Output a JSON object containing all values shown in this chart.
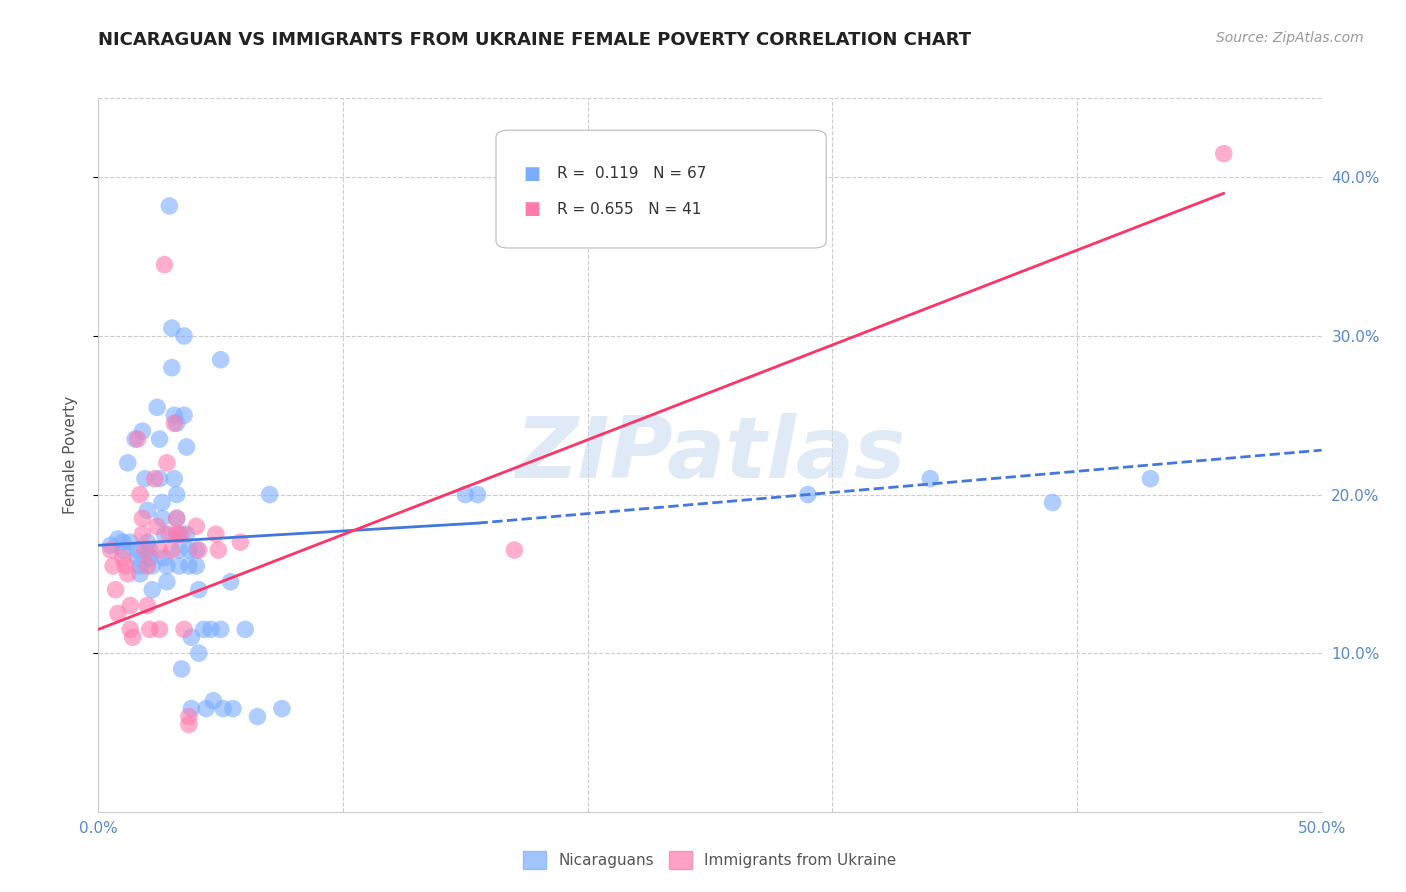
{
  "title": "NICARAGUAN VS IMMIGRANTS FROM UKRAINE FEMALE POVERTY CORRELATION CHART",
  "source": "Source: ZipAtlas.com",
  "ylabel": "Female Poverty",
  "xlim": [
    0.0,
    0.5
  ],
  "ylim": [
    0.0,
    0.45
  ],
  "xticks": [
    0.0,
    0.1,
    0.2,
    0.3,
    0.4,
    0.5
  ],
  "xtick_labels": [
    "0.0%",
    "",
    "",
    "",
    "",
    "50.0%"
  ],
  "yticks": [
    0.1,
    0.2,
    0.3,
    0.4
  ],
  "ytick_labels": [
    "10.0%",
    "20.0%",
    "30.0%",
    "40.0%"
  ],
  "nicaraguan_color": "#7aadff",
  "ukraine_color": "#ff7aad",
  "line_nicaraguan_color": "#4477dd",
  "line_ukraine_color": "#ff3366",
  "watermark": "ZIPatlas",
  "nicaraguan_scatter": [
    [
      0.005,
      0.168
    ],
    [
      0.008,
      0.172
    ],
    [
      0.01,
      0.165
    ],
    [
      0.01,
      0.17
    ],
    [
      0.012,
      0.22
    ],
    [
      0.013,
      0.17
    ],
    [
      0.015,
      0.235
    ],
    [
      0.016,
      0.16
    ],
    [
      0.016,
      0.165
    ],
    [
      0.017,
      0.15
    ],
    [
      0.017,
      0.155
    ],
    [
      0.018,
      0.24
    ],
    [
      0.019,
      0.21
    ],
    [
      0.02,
      0.19
    ],
    [
      0.02,
      0.17
    ],
    [
      0.021,
      0.165
    ],
    [
      0.021,
      0.16
    ],
    [
      0.022,
      0.155
    ],
    [
      0.022,
      0.14
    ],
    [
      0.024,
      0.255
    ],
    [
      0.025,
      0.235
    ],
    [
      0.025,
      0.21
    ],
    [
      0.026,
      0.195
    ],
    [
      0.026,
      0.185
    ],
    [
      0.027,
      0.175
    ],
    [
      0.027,
      0.16
    ],
    [
      0.028,
      0.155
    ],
    [
      0.028,
      0.145
    ],
    [
      0.029,
      0.382
    ],
    [
      0.03,
      0.305
    ],
    [
      0.03,
      0.28
    ],
    [
      0.031,
      0.25
    ],
    [
      0.031,
      0.21
    ],
    [
      0.032,
      0.245
    ],
    [
      0.032,
      0.2
    ],
    [
      0.032,
      0.185
    ],
    [
      0.033,
      0.175
    ],
    [
      0.033,
      0.165
    ],
    [
      0.033,
      0.155
    ],
    [
      0.034,
      0.09
    ],
    [
      0.035,
      0.3
    ],
    [
      0.035,
      0.25
    ],
    [
      0.036,
      0.23
    ],
    [
      0.036,
      0.175
    ],
    [
      0.037,
      0.165
    ],
    [
      0.037,
      0.155
    ],
    [
      0.038,
      0.11
    ],
    [
      0.038,
      0.065
    ],
    [
      0.04,
      0.165
    ],
    [
      0.04,
      0.155
    ],
    [
      0.041,
      0.14
    ],
    [
      0.041,
      0.1
    ],
    [
      0.043,
      0.115
    ],
    [
      0.044,
      0.065
    ],
    [
      0.046,
      0.115
    ],
    [
      0.047,
      0.07
    ],
    [
      0.05,
      0.285
    ],
    [
      0.05,
      0.115
    ],
    [
      0.051,
      0.065
    ],
    [
      0.054,
      0.145
    ],
    [
      0.055,
      0.065
    ],
    [
      0.06,
      0.115
    ],
    [
      0.065,
      0.06
    ],
    [
      0.07,
      0.2
    ],
    [
      0.075,
      0.065
    ],
    [
      0.15,
      0.2
    ],
    [
      0.155,
      0.2
    ],
    [
      0.29,
      0.2
    ],
    [
      0.34,
      0.21
    ],
    [
      0.39,
      0.195
    ],
    [
      0.43,
      0.21
    ]
  ],
  "ukraine_scatter": [
    [
      0.005,
      0.165
    ],
    [
      0.006,
      0.155
    ],
    [
      0.007,
      0.14
    ],
    [
      0.008,
      0.125
    ],
    [
      0.01,
      0.16
    ],
    [
      0.011,
      0.155
    ],
    [
      0.012,
      0.15
    ],
    [
      0.013,
      0.13
    ],
    [
      0.013,
      0.115
    ],
    [
      0.014,
      0.11
    ],
    [
      0.016,
      0.235
    ],
    [
      0.017,
      0.2
    ],
    [
      0.018,
      0.185
    ],
    [
      0.018,
      0.175
    ],
    [
      0.019,
      0.165
    ],
    [
      0.02,
      0.155
    ],
    [
      0.02,
      0.13
    ],
    [
      0.021,
      0.115
    ],
    [
      0.023,
      0.21
    ],
    [
      0.024,
      0.18
    ],
    [
      0.025,
      0.165
    ],
    [
      0.025,
      0.115
    ],
    [
      0.027,
      0.345
    ],
    [
      0.028,
      0.22
    ],
    [
      0.029,
      0.175
    ],
    [
      0.03,
      0.165
    ],
    [
      0.031,
      0.245
    ],
    [
      0.032,
      0.185
    ],
    [
      0.032,
      0.175
    ],
    [
      0.034,
      0.175
    ],
    [
      0.035,
      0.115
    ],
    [
      0.037,
      0.06
    ],
    [
      0.037,
      0.055
    ],
    [
      0.04,
      0.18
    ],
    [
      0.041,
      0.165
    ],
    [
      0.048,
      0.175
    ],
    [
      0.049,
      0.165
    ],
    [
      0.058,
      0.17
    ],
    [
      0.17,
      0.165
    ],
    [
      0.46,
      0.415
    ]
  ],
  "blue_line_solid": {
    "x0": 0.0,
    "y0": 0.168,
    "x1": 0.155,
    "y1": 0.182
  },
  "blue_line_dashed": {
    "x0": 0.155,
    "y0": 0.182,
    "x1": 0.5,
    "y1": 0.228
  },
  "pink_line": {
    "x0": 0.0,
    "y0": 0.115,
    "x1": 0.46,
    "y1": 0.39
  }
}
